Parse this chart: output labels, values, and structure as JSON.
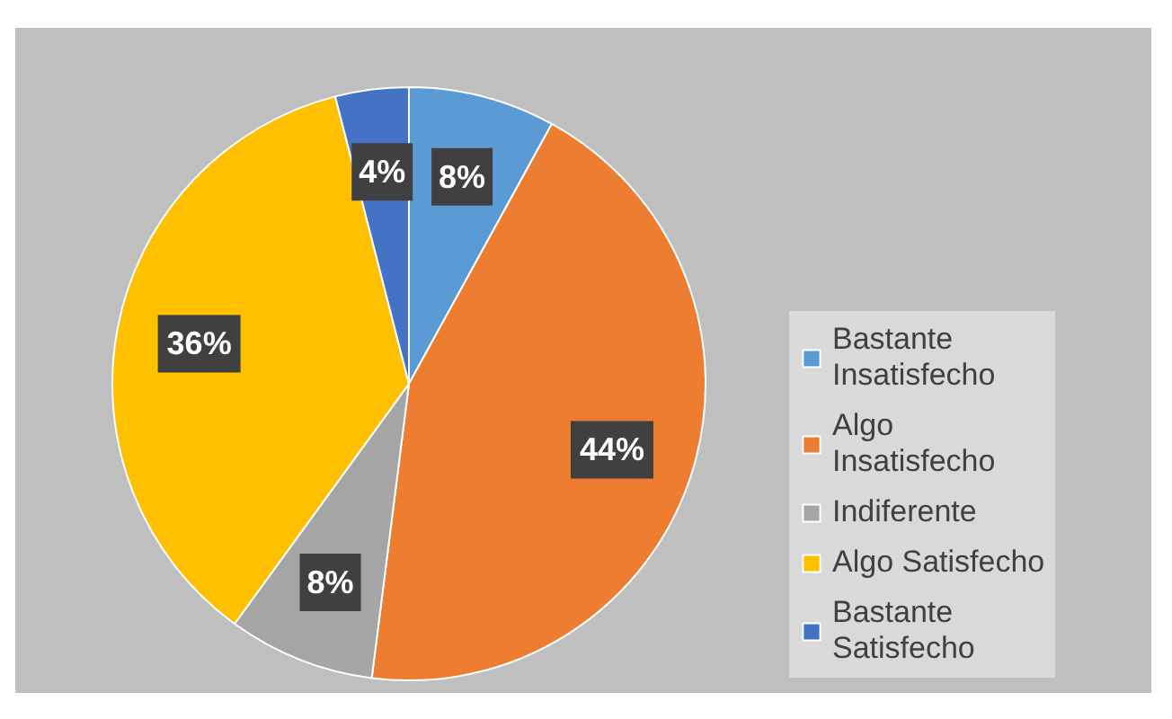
{
  "chart_data": {
    "type": "pie",
    "categories": [
      "Bastante Insatisfecho",
      "Algo Insatisfecho",
      "Indiferente",
      "Algo Satisfecho",
      "Bastante Satisfecho"
    ],
    "values": [
      8,
      44,
      8,
      36,
      4
    ],
    "colors": [
      "#5b9bd5",
      "#ed7d31",
      "#a5a5a5",
      "#ffc000",
      "#4472c4"
    ],
    "value_labels": [
      "8%",
      "44%",
      "8%",
      "36%",
      "4%"
    ],
    "legend": "right"
  }
}
